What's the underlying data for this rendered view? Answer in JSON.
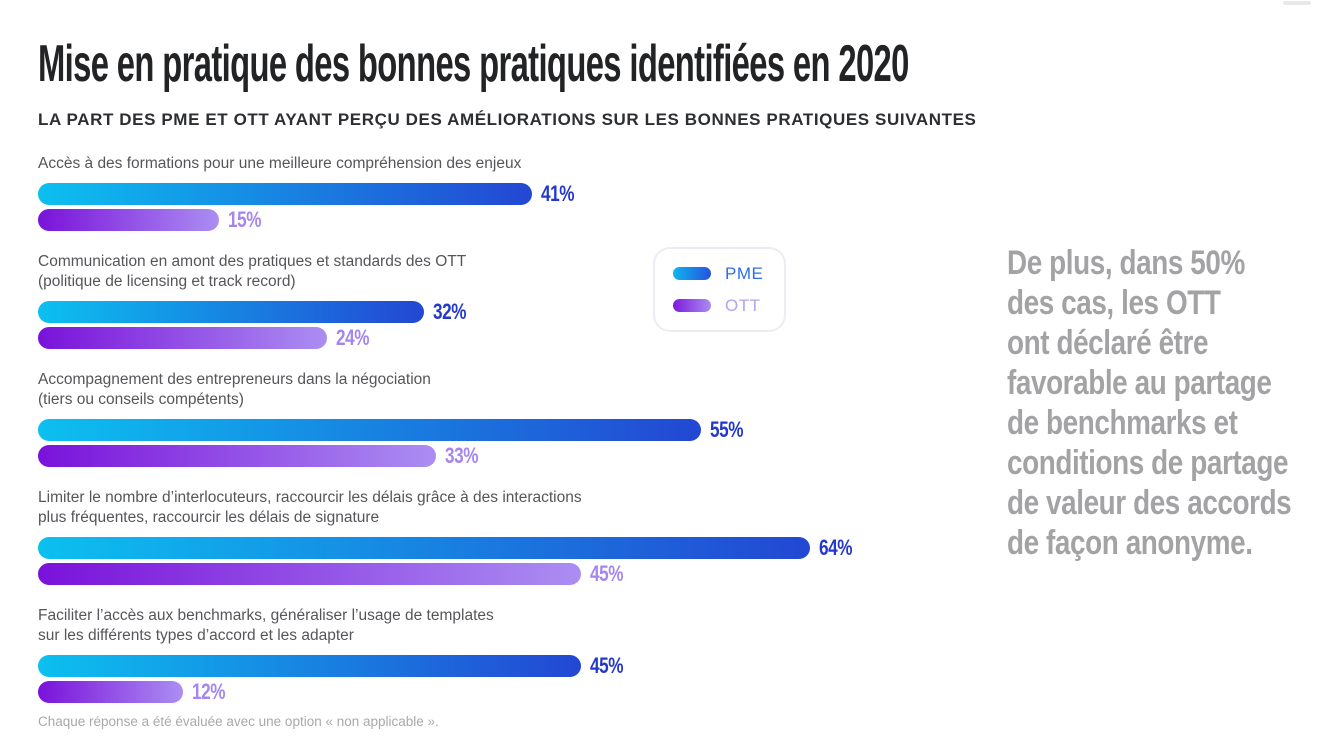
{
  "page": {
    "title": "Mise en pratique des bonnes pratiques identifiées en 2020",
    "subtitle": "LA PART DES PME ET OTT AYANT PERÇU DES AMÉLIORATIONS SUR LES BONNES PRATIQUES SUIVANTES",
    "footnote": "Chaque réponse a été évaluée avec une option « non applicable ».",
    "aside_note": "De plus, dans 50%\ndes cas, les OTT\nont déclaré être\nfavorable au partage\nde benchmarks et\nconditions de partage\nde valeur des accords\nde façon anonyme."
  },
  "legend": {
    "items": [
      {
        "label": "PME",
        "gradient_from": "#0fb5ee",
        "gradient_to": "#2553e0",
        "label_color": "#2e6ee2"
      },
      {
        "label": "OTT",
        "gradient_from": "#7d1bdc",
        "gradient_to": "#a98cf0",
        "label_color": "#b5a0f1"
      }
    ]
  },
  "chart_data": {
    "type": "bar",
    "orientation": "horizontal",
    "unit": "%",
    "xlim": [
      0,
      100
    ],
    "grid": false,
    "legend_position": "right-of-second-group",
    "categories": [
      "Accès à des formations pour une meilleure compréhension des enjeux",
      "Communication en amont des pratiques et standards des OTT\n(politique de licensing et track record)",
      "Accompagnement des entrepreneurs dans la négociation\n(tiers ou conseils compétents)",
      "Limiter le nombre d’interlocuteurs, raccourcir les délais grâce à des interactions\nplus fréquentes, raccourcir les délais de signature",
      "Faciliter l’accès aux benchmarks, généraliser l’usage de templates\nsur les différents types d’accord et les adapter"
    ],
    "series": [
      {
        "name": "PME",
        "values": [
          41,
          32,
          55,
          64,
          45
        ]
      },
      {
        "name": "OTT",
        "values": [
          15,
          24,
          33,
          45,
          12
        ]
      }
    ],
    "colors": {
      "PME": {
        "bar_from": "#0cc0f0",
        "bar_to": "#2347d3",
        "value_label": "#2438cc"
      },
      "OTT": {
        "bar_from": "#7a12da",
        "bar_to": "#ab8ef2",
        "value_label": "#a586ee"
      }
    },
    "value_label_format": "{value}%"
  }
}
